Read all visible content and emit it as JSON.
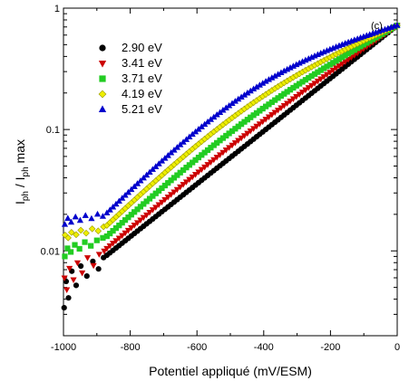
{
  "chart_data": {
    "type": "scatter",
    "panel_label": "(c)",
    "xlabel": "Potentiel appliqué (mV/ESM)",
    "ylabel_main": "I",
    "ylabel_sub1": "ph",
    "ylabel_mid": " / I",
    "ylabel_sub2": "ph",
    "ylabel_end": " max",
    "xlim": [
      -1000,
      0
    ],
    "ylim": [
      0.002,
      1
    ],
    "yscale": "log",
    "x_ticks": [
      -1000,
      -800,
      -600,
      -400,
      -200,
      0
    ],
    "x_tick_labels": [
      "-1000",
      "-800",
      "-600",
      "-400",
      "-200",
      "0"
    ],
    "y_ticks": [
      1,
      0.1,
      0.01
    ],
    "y_tick_labels": [
      "1",
      "0.1",
      "0.01"
    ],
    "legend_position": "top-left",
    "series": [
      {
        "name": "2.90 eV",
        "marker": "circle",
        "color": "#000000",
        "lowx": [
          -998,
          -992,
          -985,
          -975,
          -962,
          -948,
          -930,
          -912,
          -895,
          -880
        ],
        "lowy": [
          0.0034,
          0.0056,
          0.0041,
          0.0068,
          0.0052,
          0.0075,
          0.0062,
          0.0082,
          0.0071,
          0.0088
        ],
        "start_x": -870,
        "start_y": 0.0092,
        "end_x": 0,
        "end_y": 0.72
      },
      {
        "name": "3.41 eV",
        "marker": "triangle-down",
        "color": "#cc0000",
        "lowx": [
          -997,
          -990,
          -982,
          -970,
          -958,
          -944,
          -928,
          -910,
          -893,
          -878
        ],
        "lowy": [
          0.006,
          0.0048,
          0.0072,
          0.0058,
          0.008,
          0.0066,
          0.0088,
          0.0076,
          0.0094,
          0.01
        ],
        "start_x": -870,
        "start_y": 0.0105,
        "end_x": 0,
        "end_y": 0.72
      },
      {
        "name": "3.71 eV",
        "marker": "square",
        "color": "#22cc22",
        "lowx": [
          -996,
          -988,
          -978,
          -966,
          -952,
          -936,
          -918,
          -900,
          -882
        ],
        "lowy": [
          0.009,
          0.0105,
          0.0098,
          0.0112,
          0.0104,
          0.0118,
          0.011,
          0.0122,
          0.0128
        ],
        "start_x": -870,
        "start_y": 0.0132,
        "end_x": 0,
        "end_y": 0.72
      },
      {
        "name": "4.19 eV",
        "marker": "diamond",
        "color": "#eeee00",
        "lowx": [
          -995,
          -986,
          -976,
          -962,
          -948,
          -932,
          -914,
          -896,
          -880
        ],
        "lowy": [
          0.0135,
          0.0128,
          0.0142,
          0.0136,
          0.0148,
          0.014,
          0.0152,
          0.0146,
          0.0158
        ],
        "start_x": -870,
        "start_y": 0.0162,
        "end_x": 0,
        "end_y": 0.72
      },
      {
        "name": "5.21 eV",
        "marker": "triangle-up",
        "color": "#0000cc",
        "lowx": [
          -996,
          -987,
          -977,
          -964,
          -950,
          -934,
          -916,
          -898,
          -882
        ],
        "lowy": [
          0.0165,
          0.0185,
          0.0172,
          0.019,
          0.0178,
          0.0195,
          0.0184,
          0.02,
          0.0192
        ],
        "start_x": -870,
        "start_y": 0.0205,
        "end_x": 0,
        "end_y": 0.72
      }
    ]
  }
}
